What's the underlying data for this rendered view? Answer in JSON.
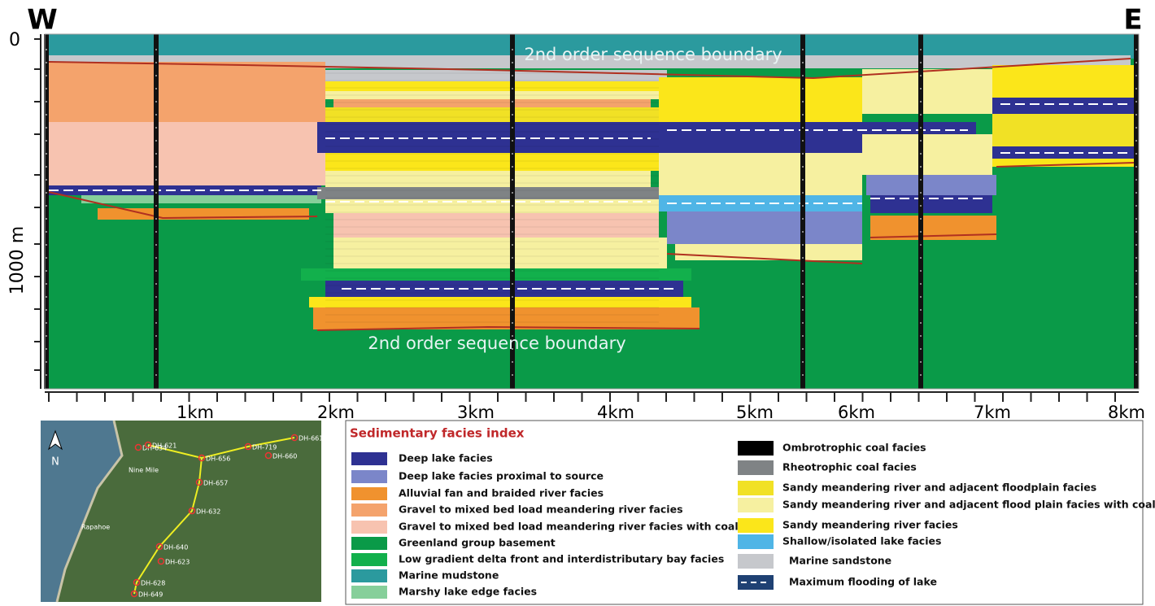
{
  "header": {
    "west": "W",
    "east": "E"
  },
  "section": {
    "depth_labels": [
      "0",
      "1000 m"
    ],
    "distance_labels": [
      "1km",
      "2km",
      "3km",
      "4km",
      "5km",
      "6km",
      "7km",
      "8km"
    ],
    "annotations": [
      "2nd order sequence boundary",
      "2nd order sequence boundary"
    ]
  },
  "map": {
    "north": "N",
    "wells": [
      "DH-634",
      "DH-621",
      "DH-656",
      "DH-719",
      "DH-660",
      "DH-661",
      "DH-657",
      "DH-632",
      "DH-640",
      "DH-623",
      "DH-628",
      "DH-649"
    ],
    "places": [
      "Nine Mile",
      "Rapahoe"
    ]
  },
  "legend": {
    "title": "Sedimentary facies index",
    "left": [
      {
        "label": "Deep lake facies",
        "color": "#2e3192"
      },
      {
        "label": "Deep lake facies proximal to source",
        "color": "#7b86c9"
      },
      {
        "label": "Alluvial fan and braided river facies",
        "color": "#f0922e"
      },
      {
        "label": "Gravel to mixed bed load meandering river facies",
        "color": "#f4a36c"
      },
      {
        "label": "Gravel to mixed bed load meandering river facies with coal",
        "color": "#f7c3b0"
      },
      {
        "label": "Greenland group basement",
        "color": "#0a9a48"
      },
      {
        "label": "Low gradient delta front and interdistributary bay facies",
        "color": "#12b04c"
      },
      {
        "label": "Marine mudstone",
        "color": "#2b9a9e"
      },
      {
        "label": "Marshy lake edge facies",
        "color": "#86cf9a"
      }
    ],
    "right": [
      {
        "label": "Ombrotrophic coal facies",
        "color": "#000000"
      },
      {
        "label": "Rheotrophic coal facies",
        "color": "#7f8385"
      },
      {
        "label": "Sandy meandering river and adjacent floodplain facies",
        "color": "#f1e125"
      },
      {
        "label": "Sandy meandering river and adjacent flood plain facies with coal",
        "color": "#f6f0a0"
      },
      {
        "label": "Sandy meandering river facies",
        "color": "#fbe61a"
      },
      {
        "label": "Shallow/isolated lake facies",
        "color": "#4fb5e6"
      },
      {
        "label": "Marine sandstone",
        "color": "#c6c8cc"
      },
      {
        "label": "Maximum  flooding of lake",
        "color": "#1f4173"
      }
    ]
  }
}
